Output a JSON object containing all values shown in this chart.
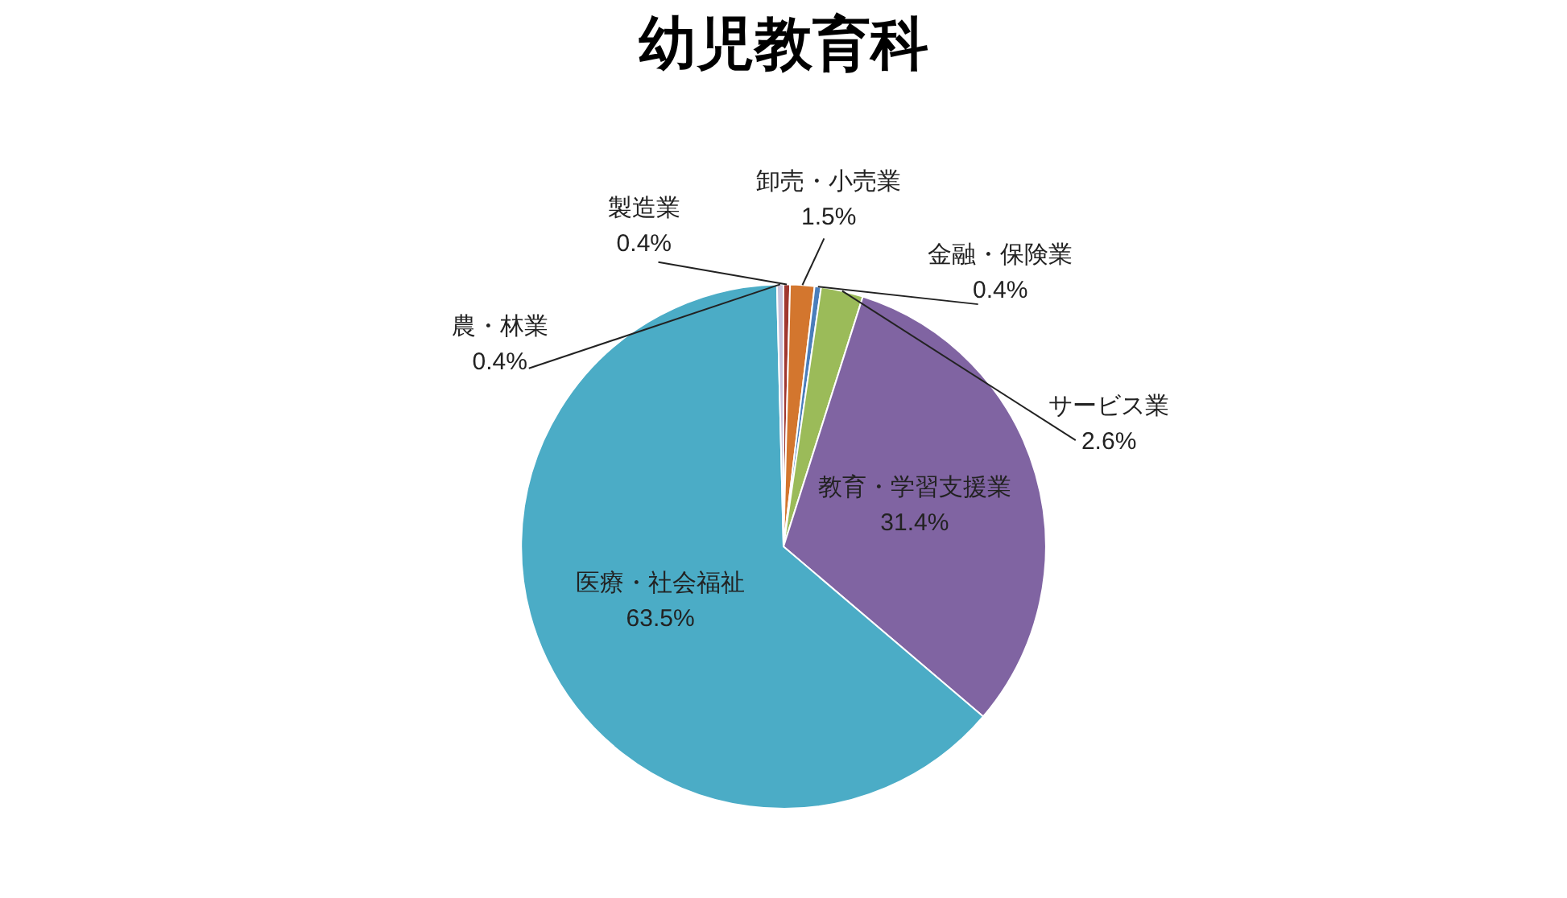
{
  "chart_data": {
    "type": "pie",
    "title": "幼児教育科",
    "categories": [
      "製造業",
      "卸売・小売業",
      "金融・保険業",
      "サービス業",
      "教育・学習支援業",
      "医療・社会福祉",
      "農・林業"
    ],
    "values": [
      0.4,
      1.5,
      0.4,
      2.6,
      31.4,
      63.5,
      0.4
    ],
    "value_labels": [
      "0.4%",
      "1.5%",
      "0.4%",
      "2.6%",
      "31.4%",
      "63.5%",
      "0.4%"
    ],
    "colors": [
      "#a0372f",
      "#d3762e",
      "#4a7ebb",
      "#9bbb59",
      "#8064a2",
      "#4bacc6",
      "#c9c3dc"
    ],
    "legend": false
  }
}
